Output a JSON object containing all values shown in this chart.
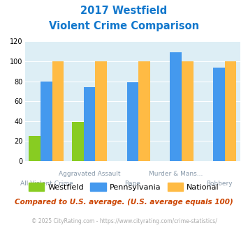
{
  "title_line1": "2017 Westfield",
  "title_line2": "Violent Crime Comparison",
  "categories": [
    "All Violent Crime",
    "Aggravated Assault",
    "Rape",
    "Murder & Mans...",
    "Robbery"
  ],
  "westfield": [
    25,
    39,
    0,
    0,
    0
  ],
  "pennsylvania": [
    80,
    74,
    79,
    109,
    94
  ],
  "national": [
    100,
    100,
    100,
    100,
    100
  ],
  "bar_colors": {
    "westfield": "#88cc22",
    "pennsylvania": "#4499ee",
    "national": "#ffbb44"
  },
  "ylim": [
    0,
    120
  ],
  "yticks": [
    0,
    20,
    40,
    60,
    80,
    100,
    120
  ],
  "background_color": "#ddeef5",
  "title_color": "#1177cc",
  "footnote": "Compared to U.S. average. (U.S. average equals 100)",
  "copyright": "© 2025 CityRating.com - https://www.cityrating.com/crime-statistics/",
  "legend_labels": [
    "Westfield",
    "Pennsylvania",
    "National"
  ],
  "top_xlabels": [
    [
      1,
      "Aggravated Assault"
    ],
    [
      3,
      "Murder & Mans..."
    ]
  ],
  "bottom_xlabels": [
    [
      0,
      "All Violent Crime"
    ],
    [
      2,
      "Rape"
    ],
    [
      4,
      "Robbery"
    ]
  ]
}
